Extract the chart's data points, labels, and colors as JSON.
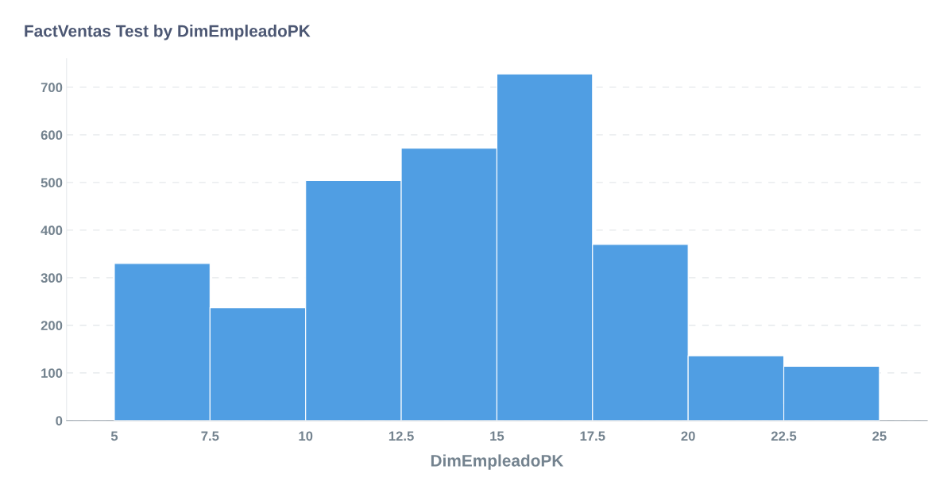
{
  "chart_data": {
    "type": "histogram",
    "title": "FactVentas Test by DimEmpleadoPK",
    "xlabel": "DimEmpleadoPK",
    "bins": [
      5,
      7.5,
      10,
      12.5,
      15,
      17.5,
      20,
      22.5,
      25
    ],
    "values": [
      330,
      237,
      504,
      572,
      728,
      370,
      136,
      114
    ],
    "color": "#509ee3",
    "xlim": [
      3.75,
      26.25
    ],
    "xticks": [
      5,
      7.5,
      10,
      12.5,
      15,
      17.5,
      20,
      22.5,
      25
    ],
    "ylim": [
      0,
      760
    ],
    "yticks": [
      0,
      100,
      200,
      300,
      400,
      500,
      600,
      700
    ],
    "grid": "y",
    "legend": false
  }
}
